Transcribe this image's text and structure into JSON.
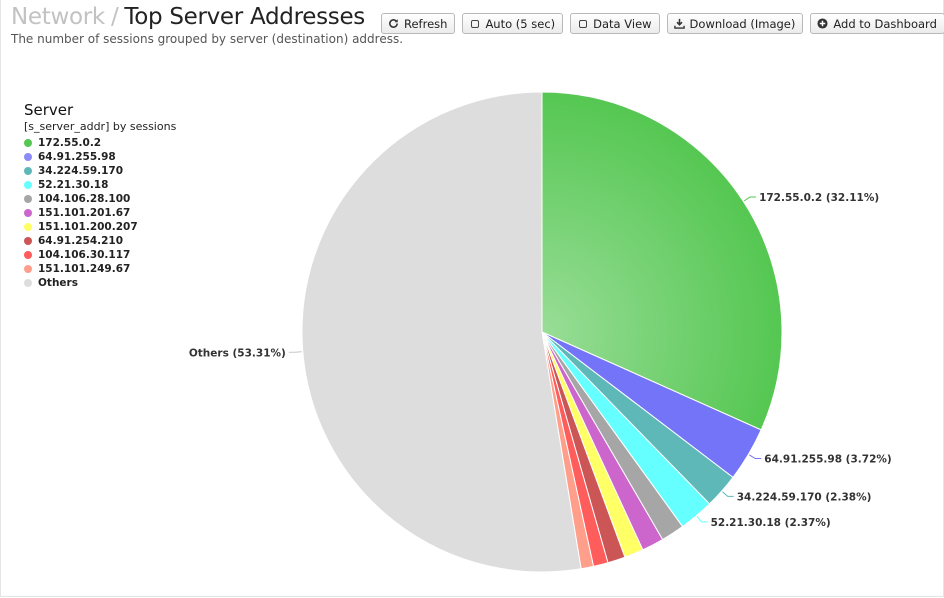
{
  "header": {
    "breadcrumb": "Network",
    "separator": "/",
    "title": "Top Server Addresses",
    "subtitle": "The number of sessions grouped by server (destination) address."
  },
  "toolbar": {
    "refresh": "Refresh",
    "auto": "Auto (5 sec)",
    "data_view": "Data View",
    "download": "Download (Image)",
    "add_dashboard": "Add to Dashboard"
  },
  "legend": {
    "title": "Server",
    "subtitle": "[s_server_addr] by sessions",
    "items": [
      {
        "label": "172.55.0.2",
        "color": "#55c752"
      },
      {
        "label": "64.91.255.98",
        "color": "#8a8afa"
      },
      {
        "label": "34.224.59.170",
        "color": "#5fb8b8"
      },
      {
        "label": "52.21.30.18",
        "color": "#66ffff"
      },
      {
        "label": "104.106.28.100",
        "color": "#a6a6a6"
      },
      {
        "label": "151.101.201.67",
        "color": "#cc66cc"
      },
      {
        "label": "151.101.200.207",
        "color": "#ffff66"
      },
      {
        "label": "64.91.254.210",
        "color": "#cc5555"
      },
      {
        "label": "104.106.30.117",
        "color": "#ff5c5c"
      },
      {
        "label": "151.101.249.67",
        "color": "#ff9e8a"
      },
      {
        "label": "Others",
        "color": "#dddddd"
      }
    ]
  },
  "chart_data": {
    "type": "pie",
    "categories": [
      "172.55.0.2",
      "64.91.255.98",
      "34.224.59.170",
      "52.21.30.18",
      "104.106.28.100",
      "151.101.201.67",
      "151.101.200.207",
      "64.91.254.210",
      "104.106.30.117",
      "151.101.249.67",
      "Others"
    ],
    "values": [
      32.11,
      3.72,
      2.38,
      2.37,
      1.6,
      1.5,
      1.3,
      1.2,
      1.0,
      0.85,
      53.31
    ],
    "colors": [
      "#55c752",
      "#7474f8",
      "#5fb8b8",
      "#66ffff",
      "#a6a6a6",
      "#cc66cc",
      "#ffff66",
      "#cc5555",
      "#ff5c5c",
      "#ff9e8a",
      "#dddddd"
    ],
    "labels": [
      {
        "text": "172.55.0.2 (32.11%)",
        "index": 0
      },
      {
        "text": "64.91.255.98 (3.72%)",
        "index": 1
      },
      {
        "text": "34.224.59.170 (2.38%)",
        "index": 2
      },
      {
        "text": "52.21.30.18 (2.37%)",
        "index": 3
      },
      {
        "text": "Others (53.31%)",
        "index": 10
      }
    ],
    "start_angle": "12 o'clock, clockwise",
    "legend_position": "left"
  }
}
